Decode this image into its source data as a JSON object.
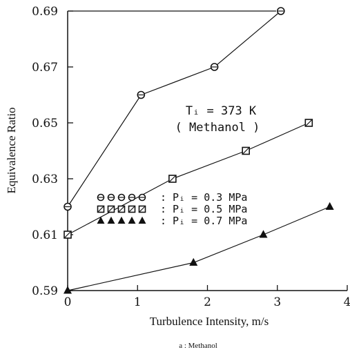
{
  "chart_data": {
    "type": "line",
    "title": "",
    "xlabel": "Turbulence Intensity, m/s",
    "ylabel": "Equivalence Ratio",
    "xlim": [
      0,
      4
    ],
    "ylim": [
      0.59,
      0.69
    ],
    "x_ticks": [
      "0",
      "1",
      "2",
      "3",
      "4"
    ],
    "y_ticks": [
      "0.59",
      "0.61",
      "0.63",
      "0.65",
      "0.67",
      "0.69"
    ],
    "annotation": {
      "line1": "Tᵢ = 373 K",
      "line2": "( Methanol )"
    },
    "legend_position": "center-left",
    "series": [
      {
        "name": ": Pᵢ = 0.3 MPa",
        "marker": "circle",
        "x": [
          0,
          1.05,
          2.1,
          3.05
        ],
        "y": [
          0.62,
          0.66,
          0.67,
          0.69
        ]
      },
      {
        "name": ": Pᵢ = 0.5 MPa",
        "marker": "square",
        "x": [
          0,
          1.5,
          2.55,
          3.45
        ],
        "y": [
          0.61,
          0.63,
          0.64,
          0.65
        ]
      },
      {
        "name": ": Pᵢ = 0.7 MPa",
        "marker": "triangle",
        "x": [
          0,
          1.8,
          2.8,
          3.75
        ],
        "y": [
          0.59,
          0.6,
          0.61,
          0.62
        ]
      }
    ]
  },
  "caption": "a : Methanol"
}
